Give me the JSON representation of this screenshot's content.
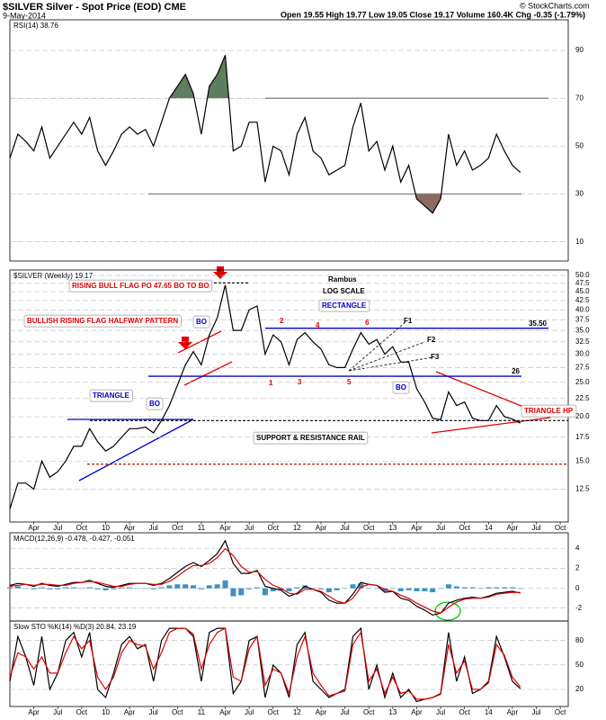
{
  "header": {
    "title": "$SILVER Silver - Spot Price (EOD) CME",
    "date": "9-May-2014",
    "quote": "Open 19.55 High 19.77 Low 19.05 Close 19.17 Volume 160.4K Chg -0.35 (-1.79%)",
    "copyright": "© StockCharts.com"
  },
  "chart_data": [
    {
      "type": "line",
      "label": "RSI(14) 38.76",
      "x": [
        0,
        1,
        2,
        3,
        4,
        5,
        6,
        7,
        8,
        9,
        10,
        11,
        12,
        13,
        14,
        15,
        16,
        17,
        18,
        19,
        20,
        21,
        22,
        23,
        24,
        25,
        26,
        27,
        28,
        29,
        30,
        31,
        32,
        33,
        34,
        35,
        36,
        37,
        38,
        39,
        40,
        41,
        42,
        43,
        44,
        45,
        46,
        47,
        48,
        49,
        50,
        51,
        52,
        53,
        54,
        55,
        56,
        57,
        58,
        59,
        60,
        61,
        62,
        63,
        64
      ],
      "xlim": [
        0,
        70
      ],
      "ylim": [
        2,
        102.8
      ],
      "yticks": [
        10,
        30,
        50,
        70,
        90
      ],
      "levels": [
        {
          "value": 70,
          "color": "#888"
        },
        {
          "value": 30,
          "color": "#888"
        }
      ],
      "fills": [
        {
          "above": 70,
          "color": "#5f7d5f"
        },
        {
          "below": 30,
          "color": "#8c6a62"
        }
      ],
      "series": [
        {
          "name": "RSI(14)",
          "color": "#000",
          "values": [
            45,
            55,
            52,
            48,
            58,
            45,
            50,
            55,
            60,
            55,
            62,
            48,
            42,
            48,
            55,
            58,
            55,
            57,
            50,
            60,
            70,
            75,
            80,
            72,
            55,
            75,
            80,
            88,
            48,
            50,
            60,
            60,
            35,
            50,
            48,
            38,
            55,
            62,
            48,
            45,
            38,
            40,
            42,
            58,
            68,
            48,
            52,
            40,
            50,
            35,
            42,
            28,
            25,
            22,
            28,
            55,
            42,
            48,
            40,
            42,
            45,
            55,
            48,
            42,
            39
          ]
        }
      ]
    },
    {
      "type": "line",
      "label": "$SILVER (Weekly) 19.17",
      "log": true,
      "x": [
        0,
        1,
        2,
        3,
        4,
        5,
        6,
        7,
        8,
        9,
        10,
        11,
        12,
        13,
        14,
        15,
        16,
        17,
        18,
        19,
        20,
        21,
        22,
        23,
        24,
        25,
        26,
        27,
        28,
        29,
        30,
        31,
        32,
        33,
        34,
        35,
        36,
        37,
        38,
        39,
        40,
        41,
        42,
        43,
        44,
        45,
        46,
        47,
        48,
        49,
        50,
        51,
        52,
        53,
        54,
        55,
        56,
        57,
        58,
        59,
        60,
        61,
        62,
        63,
        64
      ],
      "xlim": [
        0,
        70
      ],
      "ylim": [
        10.1,
        51.8
      ],
      "yticks": [
        12.5,
        {
          "value": 15,
          "label": "15.0"
        },
        17.5,
        {
          "value": 20,
          "label": "20.0"
        },
        22.5,
        {
          "value": 25,
          "label": "25.0"
        },
        27.5,
        {
          "value": 30,
          "label": "30.0"
        },
        32.5,
        {
          "value": 35,
          "label": "35.0"
        },
        37.5,
        {
          "value": 40,
          "label": "40.0"
        },
        42.5,
        {
          "value": 45,
          "label": "45.0"
        },
        47.5,
        {
          "value": 50,
          "label": "50.0"
        }
      ],
      "xticks": [
        {
          "value": 3,
          "label": "Apr"
        },
        {
          "value": 6,
          "label": "Jul"
        },
        {
          "value": 9,
          "label": "Oct"
        },
        {
          "value": 12,
          "label": "10"
        },
        {
          "value": 15,
          "label": "Apr"
        },
        {
          "value": 18,
          "label": "Jul"
        },
        {
          "value": 21,
          "label": "Oct"
        },
        {
          "value": 24,
          "label": "11"
        },
        {
          "value": 27,
          "label": "Apr"
        },
        {
          "value": 30,
          "label": "Jul"
        },
        {
          "value": 33,
          "label": "Oct"
        },
        {
          "value": 36,
          "label": "12"
        },
        {
          "value": 39,
          "label": "Apr"
        },
        {
          "value": 42,
          "label": "Jul"
        },
        {
          "value": 45,
          "label": "Oct"
        },
        {
          "value": 48,
          "label": "13"
        },
        {
          "value": 51,
          "label": "Apr"
        },
        {
          "value": 54,
          "label": "Jul"
        },
        {
          "value": 57,
          "label": "Oct"
        },
        {
          "value": 60,
          "label": "14"
        },
        {
          "value": 63,
          "label": "Apr"
        },
        {
          "value": 66,
          "label": "Jul"
        },
        {
          "value": 69,
          "label": "Oct"
        }
      ],
      "levels": [
        {
          "value": 35.5,
          "label": "35.50",
          "color": "#0000cc"
        },
        {
          "value": 26,
          "label": "26",
          "color": "#0000cc"
        },
        {
          "value": 19.5,
          "color": "#000",
          "dash": true
        },
        {
          "value": 14.7,
          "color": "#a02000",
          "dash": true
        },
        {
          "value": 47.65,
          "color": "#000",
          "dash": true
        }
      ],
      "annotations": [
        "RISING BULL FLAG PO 47.65 BO TO BO",
        "BULLISH RISING FLAG HALFWAY PATTERN",
        "TRIANGLE",
        "BO",
        "BO",
        "BO",
        "Rambus",
        "LOG SCALE",
        "RECTANGLE",
        "1",
        "2",
        "3",
        "4",
        "5",
        "6",
        "F1",
        "F2",
        "F3",
        "TRIANGLE HP",
        "SUPPORT & RESISTANCE RAIL"
      ],
      "series": [
        {
          "name": "$SILVER",
          "color": "#000",
          "values": [
            11,
            13,
            13,
            12.5,
            15,
            13.5,
            14,
            15,
            16.5,
            16.5,
            18.5,
            17,
            16,
            16.5,
            17.5,
            18.5,
            18.5,
            18.7,
            18,
            19.5,
            21.5,
            24.5,
            28,
            30.5,
            28,
            34,
            38,
            47,
            35,
            35,
            40,
            41,
            30,
            34,
            32.5,
            28,
            33,
            34.5,
            32.5,
            31,
            28,
            27.5,
            27.5,
            31,
            34.5,
            32,
            33,
            30,
            31.5,
            28.5,
            28.5,
            24,
            22,
            19.8,
            19.6,
            23.5,
            21.5,
            22,
            19.8,
            19.5,
            19.5,
            21.5,
            20,
            19.7,
            19.17
          ]
        }
      ]
    },
    {
      "type": "line",
      "label": "MACD(12,26,9) -0.478, -0.427, -0.051",
      "x": [
        0,
        1,
        2,
        3,
        4,
        5,
        6,
        7,
        8,
        9,
        10,
        11,
        12,
        13,
        14,
        15,
        16,
        17,
        18,
        19,
        20,
        21,
        22,
        23,
        24,
        25,
        26,
        27,
        28,
        29,
        30,
        31,
        32,
        33,
        34,
        35,
        36,
        37,
        38,
        39,
        40,
        41,
        42,
        43,
        44,
        45,
        46,
        47,
        48,
        49,
        50,
        51,
        52,
        53,
        54,
        55,
        56,
        57,
        58,
        59,
        60,
        61,
        62,
        63,
        64
      ],
      "xlim": [
        0,
        70
      ],
      "ylim": [
        -3.3,
        5.6
      ],
      "yticks": [
        -2,
        0,
        2,
        4
      ],
      "series": [
        {
          "name": "Histogram",
          "type": "bar",
          "color": "#3d8fc4",
          "values": [
            0.1,
            0.2,
            0,
            -0.1,
            0.1,
            -0.1,
            -0.1,
            0.1,
            0.1,
            0,
            0.1,
            -0.1,
            -0.2,
            -0.1,
            0.1,
            0.1,
            0,
            0,
            -0.1,
            0.1,
            0.3,
            0.4,
            0.4,
            0.3,
            -0.1,
            0.3,
            0.4,
            0.8,
            -0.8,
            -0.7,
            -0.1,
            0.1,
            -0.7,
            -0.3,
            -0.2,
            -0.3,
            0.1,
            0.3,
            0,
            -0.1,
            -0.4,
            -0.2,
            0,
            0.4,
            0.5,
            0,
            0,
            -0.3,
            0,
            -0.3,
            -0.2,
            -0.3,
            -0.3,
            -0.4,
            0,
            0.4,
            0.2,
            0.1,
            0.1,
            0,
            0.1,
            0.1,
            0.1,
            0.1,
            -0.051
          ]
        },
        {
          "name": "MACD",
          "color": "#000",
          "values": [
            0.3,
            0.5,
            0.4,
            0.2,
            0.5,
            0.3,
            0.2,
            0.4,
            0.6,
            0.6,
            0.8,
            0.5,
            0.2,
            0.1,
            0.3,
            0.5,
            0.5,
            0.5,
            0.3,
            0.5,
            1.0,
            1.6,
            2.2,
            2.6,
            2.2,
            2.8,
            3.5,
            4.8,
            2.5,
            1.5,
            1.5,
            1.8,
            0.2,
            0.0,
            -0.2,
            -0.8,
            -0.5,
            0.2,
            -0.1,
            -0.4,
            -1.2,
            -1.5,
            -1.5,
            -0.6,
            0.6,
            0.4,
            0.3,
            -0.4,
            -0.3,
            -1.0,
            -1.2,
            -1.8,
            -2.2,
            -2.7,
            -2.5,
            -1.5,
            -1.2,
            -1.0,
            -0.9,
            -1.0,
            -0.8,
            -0.5,
            -0.4,
            -0.3,
            -0.478
          ]
        },
        {
          "name": "Signal",
          "color": "#e00000",
          "values": [
            0.2,
            0.3,
            0.4,
            0.3,
            0.4,
            0.4,
            0.3,
            0.3,
            0.5,
            0.6,
            0.7,
            0.6,
            0.4,
            0.2,
            0.2,
            0.4,
            0.5,
            0.5,
            0.4,
            0.4,
            0.7,
            1.2,
            1.8,
            2.3,
            2.3,
            2.5,
            3.1,
            4.0,
            3.3,
            2.2,
            1.6,
            1.7,
            0.9,
            0.3,
            0.0,
            -0.5,
            -0.6,
            -0.1,
            -0.1,
            -0.3,
            -0.8,
            -1.3,
            -1.5,
            -1.0,
            0.1,
            0.4,
            0.3,
            -0.1,
            -0.3,
            -0.7,
            -1.0,
            -1.5,
            -1.9,
            -2.3,
            -2.5,
            -1.9,
            -1.4,
            -1.1,
            -1.0,
            -1.0,
            -0.9,
            -0.6,
            -0.5,
            -0.4,
            -0.427
          ]
        }
      ]
    },
    {
      "type": "line",
      "label": "Slow STO %K(14) %D(3) 20.84, 23.19",
      "x": [
        0,
        1,
        2,
        3,
        4,
        5,
        6,
        7,
        8,
        9,
        10,
        11,
        12,
        13,
        14,
        15,
        16,
        17,
        18,
        19,
        20,
        21,
        22,
        23,
        24,
        25,
        26,
        27,
        28,
        29,
        30,
        31,
        32,
        33,
        34,
        35,
        36,
        37,
        38,
        39,
        40,
        41,
        42,
        43,
        44,
        45,
        46,
        47,
        48,
        49,
        50,
        51,
        52,
        53,
        54,
        55,
        56,
        57,
        58,
        59,
        60,
        61,
        62,
        63,
        64
      ],
      "xlim": [
        0,
        70
      ],
      "ylim": [
        -1,
        104
      ],
      "yticks": [
        20,
        50,
        80
      ],
      "xticks": [
        {
          "value": 3,
          "label": "Apr"
        },
        {
          "value": 6,
          "label": "Jul"
        },
        {
          "value": 9,
          "label": "Oct"
        },
        {
          "value": 12,
          "label": "10"
        },
        {
          "value": 15,
          "label": "Apr"
        },
        {
          "value": 18,
          "label": "Jul"
        },
        {
          "value": 21,
          "label": "Oct"
        },
        {
          "value": 24,
          "label": "11"
        },
        {
          "value": 27,
          "label": "Apr"
        },
        {
          "value": 30,
          "label": "Jul"
        },
        {
          "value": 33,
          "label": "Oct"
        },
        {
          "value": 36,
          "label": "12"
        },
        {
          "value": 39,
          "label": "Apr"
        },
        {
          "value": 42,
          "label": "Jul"
        },
        {
          "value": 45,
          "label": "Oct"
        },
        {
          "value": 48,
          "label": "13"
        },
        {
          "value": 51,
          "label": "Apr"
        },
        {
          "value": 54,
          "label": "Jul"
        },
        {
          "value": 57,
          "label": "Oct"
        },
        {
          "value": 60,
          "label": "14"
        },
        {
          "value": 63,
          "label": "Apr"
        },
        {
          "value": 66,
          "label": "Jul"
        },
        {
          "value": 69,
          "label": "Oct"
        }
      ],
      "series": [
        {
          "name": "%K",
          "color": "#000",
          "values": [
            30,
            85,
            60,
            25,
            85,
            20,
            40,
            80,
            90,
            60,
            90,
            20,
            10,
            40,
            75,
            85,
            70,
            75,
            30,
            80,
            95,
            95,
            95,
            85,
            30,
            90,
            95,
            95,
            15,
            30,
            80,
            85,
            10,
            50,
            40,
            10,
            75,
            90,
            30,
            20,
            10,
            15,
            20,
            85,
            95,
            20,
            50,
            10,
            40,
            10,
            20,
            5,
            8,
            10,
            15,
            90,
            30,
            60,
            15,
            20,
            30,
            85,
            60,
            30,
            20.84
          ]
        },
        {
          "name": "%D",
          "color": "#e00000",
          "values": [
            35,
            65,
            60,
            45,
            60,
            40,
            40,
            65,
            85,
            70,
            80,
            35,
            20,
            35,
            65,
            80,
            75,
            73,
            45,
            65,
            90,
            95,
            95,
            88,
            45,
            75,
            90,
            95,
            35,
            30,
            70,
            85,
            25,
            45,
            40,
            15,
            60,
            85,
            40,
            25,
            12,
            15,
            18,
            75,
            90,
            30,
            45,
            15,
            35,
            15,
            18,
            8,
            8,
            10,
            14,
            75,
            40,
            55,
            20,
            20,
            28,
            75,
            62,
            35,
            23.19
          ]
        }
      ]
    }
  ]
}
